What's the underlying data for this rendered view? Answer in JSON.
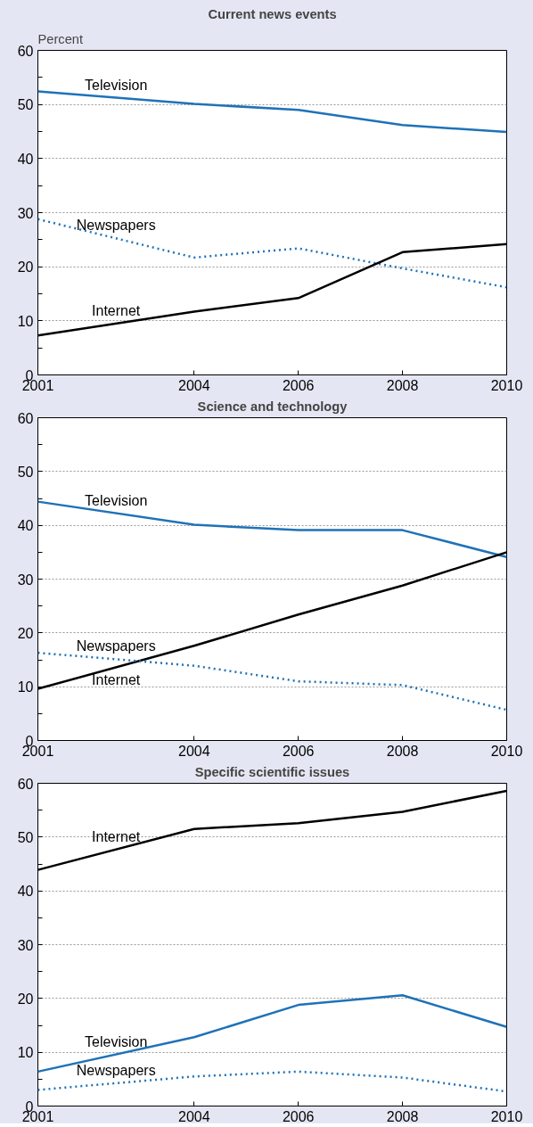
{
  "chart_data": [
    {
      "type": "line",
      "title": "Current news events",
      "ylabel": "Percent",
      "x": [
        2001,
        2004,
        2006,
        2008,
        2010
      ],
      "xlim": [
        2001,
        2010
      ],
      "xticks": [
        2001,
        2004,
        2006,
        2008,
        2010
      ],
      "ylim": [
        0,
        60
      ],
      "yticks": [
        0,
        {
          "value": 5,
          "label": null
        },
        10,
        {
          "value": 15,
          "label": null
        },
        20,
        {
          "value": 25,
          "label": null
        },
        30,
        {
          "value": 35,
          "label": null
        },
        40,
        {
          "value": 45,
          "label": null
        },
        50,
        {
          "value": 55,
          "label": null
        },
        60
      ],
      "grid": "y",
      "legend": false,
      "marker": "none",
      "series": [
        {
          "name": "Television",
          "color": "#1f72b8",
          "line_style": "solid",
          "values": [
            52.4,
            50.1,
            49.0,
            46.2,
            44.9
          ]
        },
        {
          "name": "Newspapers",
          "color": "#1f72b8",
          "line_style": "dotted",
          "values": [
            28.8,
            21.7,
            23.4,
            19.7,
            16.2
          ]
        },
        {
          "name": "Internet",
          "color": "#000000",
          "line_style": "solid",
          "values": [
            7.3,
            11.7,
            14.2,
            22.7,
            24.2
          ]
        }
      ]
    },
    {
      "type": "line",
      "title": "Science and technology",
      "x": [
        2001,
        2004,
        2006,
        2008,
        2010
      ],
      "xlim": [
        2001,
        2010
      ],
      "xticks": [
        2001,
        2004,
        2006,
        2008,
        2010
      ],
      "ylim": [
        0,
        60
      ],
      "yticks": [
        0,
        {
          "value": 5,
          "label": null
        },
        10,
        {
          "value": 15,
          "label": null
        },
        20,
        {
          "value": 25,
          "label": null
        },
        30,
        {
          "value": 35,
          "label": null
        },
        40,
        {
          "value": 45,
          "label": null
        },
        50,
        {
          "value": 55,
          "label": null
        },
        60
      ],
      "grid": "y",
      "legend": false,
      "marker": "none",
      "series": [
        {
          "name": "Television",
          "color": "#1f72b8",
          "line_style": "solid",
          "values": [
            44.4,
            40.1,
            39.1,
            39.1,
            34.1
          ]
        },
        {
          "name": "Internet",
          "color": "#000000",
          "line_style": "solid",
          "values": [
            9.6,
            17.6,
            23.4,
            28.8,
            35.0
          ]
        },
        {
          "name": "Newspapers",
          "color": "#1f72b8",
          "line_style": "dotted",
          "values": [
            16.3,
            13.9,
            11.0,
            10.3,
            5.7
          ]
        }
      ]
    },
    {
      "type": "line",
      "title": "Specific scientific issues",
      "x": [
        2001,
        2004,
        2006,
        2008,
        2010
      ],
      "xlim": [
        2001,
        2010
      ],
      "xticks": [
        2001,
        2004,
        2006,
        2008,
        2010
      ],
      "ylim": [
        0,
        60
      ],
      "yticks": [
        0,
        {
          "value": 5,
          "label": null
        },
        10,
        {
          "value": 15,
          "label": null
        },
        20,
        {
          "value": 25,
          "label": null
        },
        30,
        {
          "value": 35,
          "label": null
        },
        40,
        {
          "value": 45,
          "label": null
        },
        50,
        {
          "value": 55,
          "label": null
        },
        60
      ],
      "grid": "y",
      "legend": false,
      "marker": "none",
      "series": [
        {
          "name": "Internet",
          "color": "#000000",
          "line_style": "solid",
          "values": [
            43.9,
            51.5,
            52.6,
            54.7,
            58.6
          ]
        },
        {
          "name": "Television",
          "color": "#1f72b8",
          "line_style": "solid",
          "values": [
            6.4,
            12.8,
            18.8,
            20.6,
            14.7
          ]
        },
        {
          "name": "Newspapers",
          "color": "#1f72b8",
          "line_style": "dotted",
          "values": [
            3.0,
            5.5,
            6.4,
            5.3,
            2.7
          ]
        }
      ]
    }
  ]
}
